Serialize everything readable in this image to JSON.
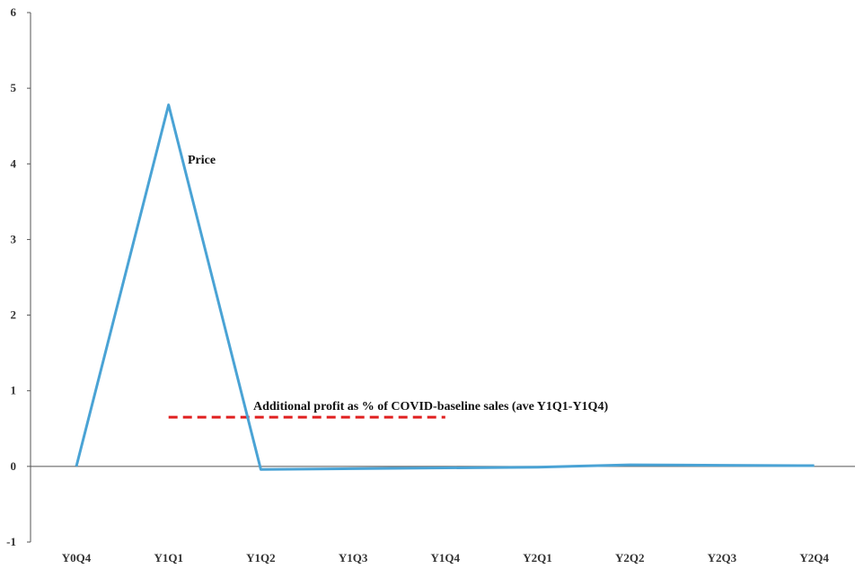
{
  "chart_data": {
    "type": "line",
    "title": "",
    "xlabel": "",
    "ylabel": "",
    "categories": [
      "Y0Q4",
      "Y1Q1",
      "Y1Q2",
      "Y1Q3",
      "Y1Q4",
      "Y2Q1",
      "Y2Q2",
      "Y2Q3",
      "Y2Q4"
    ],
    "ylim": [
      -1,
      6
    ],
    "yticks": [
      "6",
      "5",
      "4",
      "3",
      "2",
      "1",
      "0",
      "-1"
    ],
    "series": [
      {
        "name": "Price",
        "color": "#4aa3d5",
        "values": [
          0,
          4.78,
          -0.04,
          -0.03,
          -0.02,
          -0.01,
          0.02,
          0.015,
          0.01
        ]
      }
    ],
    "reference_line": {
      "label": "Additional profit as % of COVID-baseline sales (ave Y1Q1-Y1Q4)",
      "value": 0.65,
      "color": "#e02020",
      "from_category": "Y1Q1",
      "to_category": "Y1Q4"
    },
    "grid": false,
    "legend": "none"
  }
}
